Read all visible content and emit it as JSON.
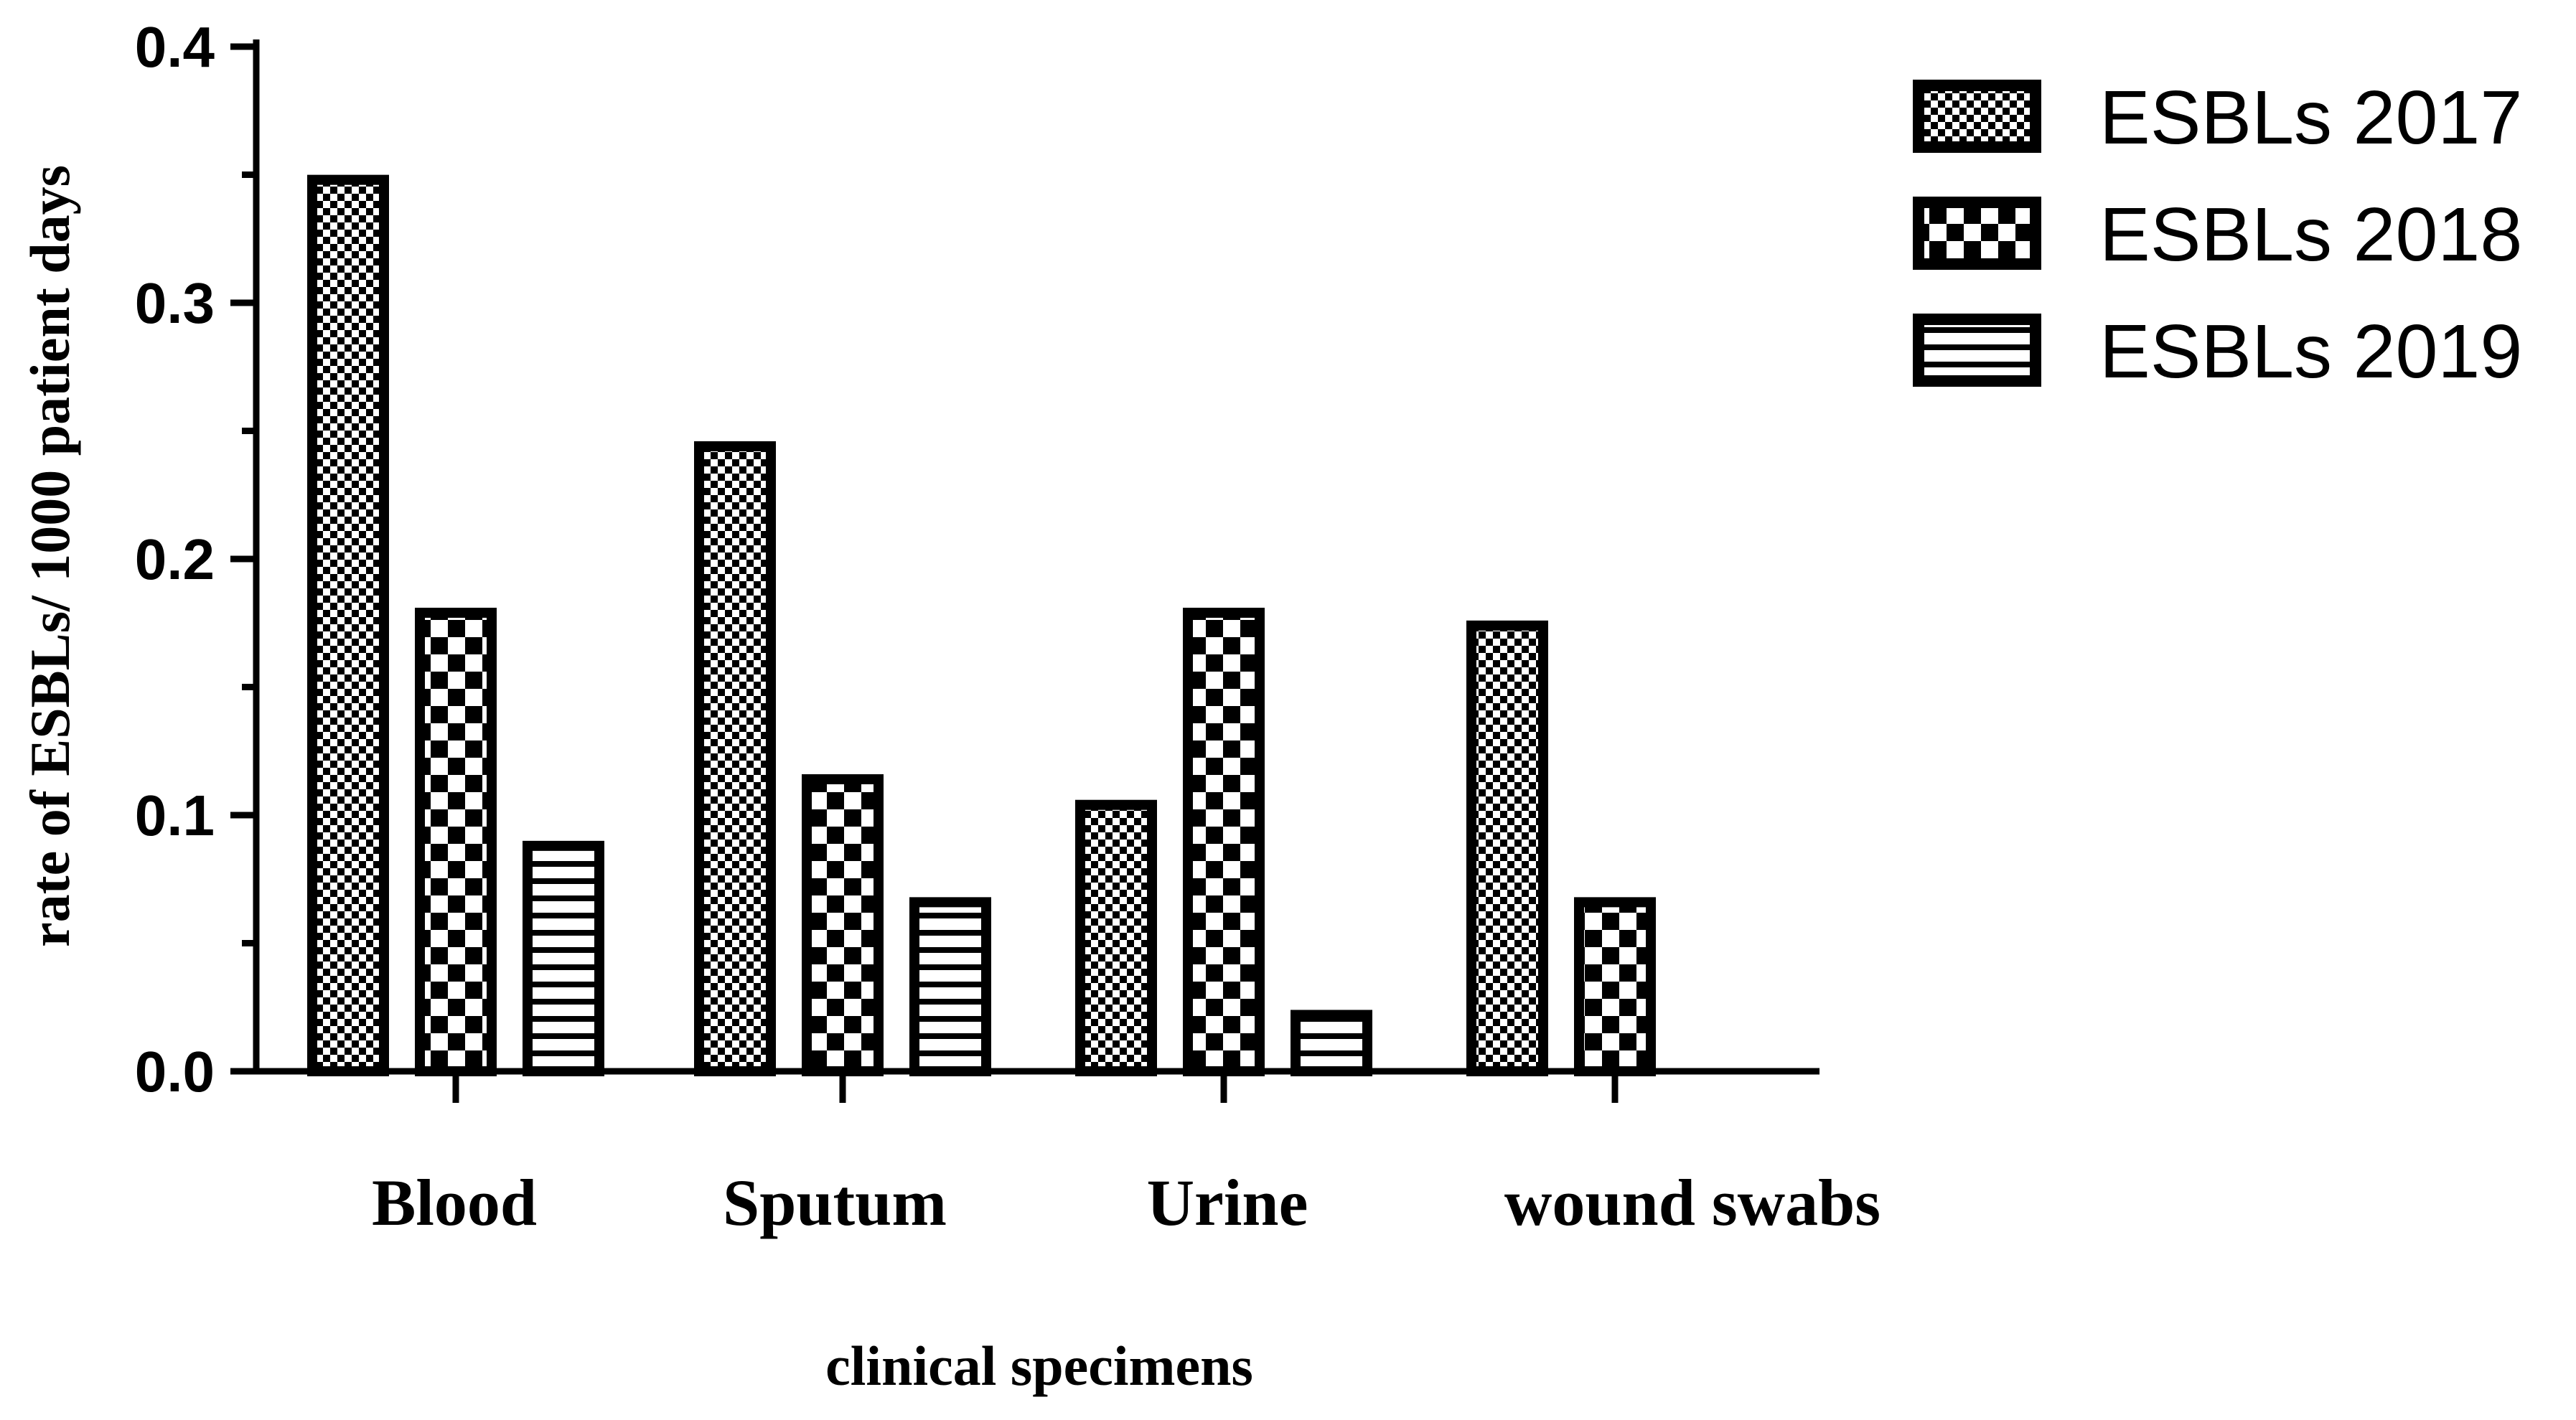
{
  "chart_data": {
    "type": "bar",
    "title": "",
    "xlabel": "clinical specimens",
    "ylabel": "rate of ESBLs/ 1000 patient days",
    "ylim": [
      0,
      0.4
    ],
    "yticks": [
      0.0,
      0.1,
      0.2,
      0.3,
      0.4
    ],
    "ytick_labels": [
      "0.0",
      "0.1",
      "0.2",
      "0.3",
      "0.4"
    ],
    "categories": [
      "Blood",
      "Sputum",
      "Urine",
      "wound swabs"
    ],
    "series": [
      {
        "name": "ESBLs 2017",
        "pattern": "fine-checker",
        "values": [
          0.348,
          0.244,
          0.104,
          0.174
        ]
      },
      {
        "name": "ESBLs 2018",
        "pattern": "coarse-checker",
        "values": [
          0.179,
          0.114,
          0.179,
          0.066
        ]
      },
      {
        "name": "ESBLs 2019",
        "pattern": "horizontal-lines",
        "values": [
          0.088,
          0.066,
          0.022,
          0.0
        ]
      }
    ],
    "legend_position": "top-right",
    "grid": false
  },
  "colors": {
    "ink": "#000000",
    "paper": "#ffffff"
  }
}
